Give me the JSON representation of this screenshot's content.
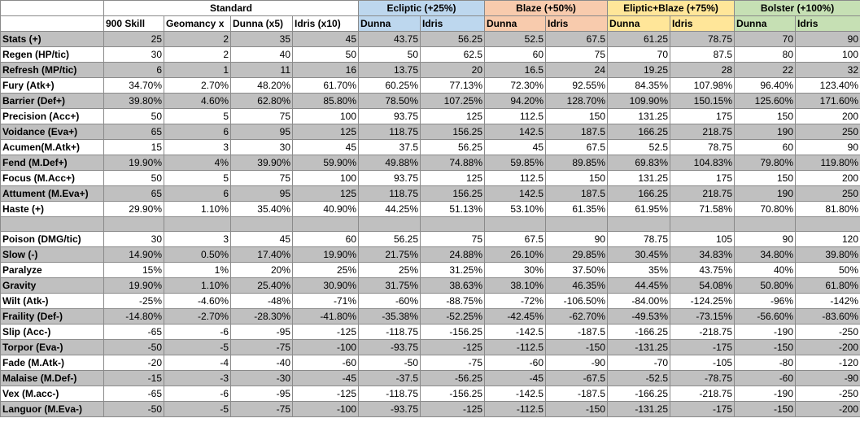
{
  "header": {
    "groups": [
      {
        "label": "Standard",
        "span": 4,
        "cls": "c-std"
      },
      {
        "label": "Ecliptic (+25%)",
        "span": 2,
        "cls": "c-ecl"
      },
      {
        "label": "Blaze (+50%)",
        "span": 2,
        "cls": "c-blz"
      },
      {
        "label": "Eliptic+Blaze (+75%)",
        "span": 2,
        "cls": "c-eb"
      },
      {
        "label": "Bolster (+100%)",
        "span": 2,
        "cls": "c-bol"
      }
    ],
    "columns": [
      "900 Skill",
      "Geomancy x",
      "Dunna (x5)",
      "Idris (x10)",
      "Dunna",
      "Idris",
      "Dunna",
      "Idris",
      "Dunna",
      "Idris",
      "Dunna",
      "Idris"
    ]
  },
  "colors": {
    "ecliptic": "#bdd7ee",
    "blaze": "#f8cbad",
    "ecliptic_blaze": "#ffe699",
    "bolster": "#c6e0b4",
    "gray_row": "#c0c0c0"
  },
  "rows": [
    {
      "label": "Stats (+)",
      "values": [
        "25",
        "2",
        "35",
        "45",
        "43.75",
        "56.25",
        "52.5",
        "67.5",
        "61.25",
        "78.75",
        "70",
        "90"
      ]
    },
    {
      "label": "Regen (HP/tic)",
      "values": [
        "30",
        "2",
        "40",
        "50",
        "50",
        "62.5",
        "60",
        "75",
        "70",
        "87.5",
        "80",
        "100"
      ]
    },
    {
      "label": "Refresh (MP/tic)",
      "values": [
        "6",
        "1",
        "11",
        "16",
        "13.75",
        "20",
        "16.5",
        "24",
        "19.25",
        "28",
        "22",
        "32"
      ]
    },
    {
      "label": "Fury (Atk+)",
      "values": [
        "34.70%",
        "2.70%",
        "48.20%",
        "61.70%",
        "60.25%",
        "77.13%",
        "72.30%",
        "92.55%",
        "84.35%",
        "107.98%",
        "96.40%",
        "123.40%"
      ]
    },
    {
      "label": "Barrier (Def+)",
      "values": [
        "39.80%",
        "4.60%",
        "62.80%",
        "85.80%",
        "78.50%",
        "107.25%",
        "94.20%",
        "128.70%",
        "109.90%",
        "150.15%",
        "125.60%",
        "171.60%"
      ]
    },
    {
      "label": "Precision (Acc+)",
      "values": [
        "50",
        "5",
        "75",
        "100",
        "93.75",
        "125",
        "112.5",
        "150",
        "131.25",
        "175",
        "150",
        "200"
      ]
    },
    {
      "label": "Voidance (Eva+)",
      "values": [
        "65",
        "6",
        "95",
        "125",
        "118.75",
        "156.25",
        "142.5",
        "187.5",
        "166.25",
        "218.75",
        "190",
        "250"
      ]
    },
    {
      "label": "Acumen(M.Atk+)",
      "values": [
        "15",
        "3",
        "30",
        "45",
        "37.5",
        "56.25",
        "45",
        "67.5",
        "52.5",
        "78.75",
        "60",
        "90"
      ]
    },
    {
      "label": "Fend (M.Def+)",
      "values": [
        "19.90%",
        "4%",
        "39.90%",
        "59.90%",
        "49.88%",
        "74.88%",
        "59.85%",
        "89.85%",
        "69.83%",
        "104.83%",
        "79.80%",
        "119.80%"
      ]
    },
    {
      "label": "Focus (M.Acc+)",
      "values": [
        "50",
        "5",
        "75",
        "100",
        "93.75",
        "125",
        "112.5",
        "150",
        "131.25",
        "175",
        "150",
        "200"
      ]
    },
    {
      "label": "Attument (M.Eva+)",
      "values": [
        "65",
        "6",
        "95",
        "125",
        "118.75",
        "156.25",
        "142.5",
        "187.5",
        "166.25",
        "218.75",
        "190",
        "250"
      ]
    },
    {
      "label": "Haste (+)",
      "values": [
        "29.90%",
        "1.10%",
        "35.40%",
        "40.90%",
        "44.25%",
        "51.13%",
        "53.10%",
        "61.35%",
        "61.95%",
        "71.58%",
        "70.80%",
        "81.80%"
      ]
    },
    {
      "label": "",
      "values": [
        "",
        "",
        "",
        "",
        "",
        "",
        "",
        "",
        "",
        "",
        "",
        ""
      ],
      "spacer": true
    },
    {
      "label": "Poison (DMG/tic)",
      "values": [
        "30",
        "3",
        "45",
        "60",
        "56.25",
        "75",
        "67.5",
        "90",
        "78.75",
        "105",
        "90",
        "120"
      ]
    },
    {
      "label": "Slow (-)",
      "values": [
        "14.90%",
        "0.50%",
        "17.40%",
        "19.90%",
        "21.75%",
        "24.88%",
        "26.10%",
        "29.85%",
        "30.45%",
        "34.83%",
        "34.80%",
        "39.80%"
      ]
    },
    {
      "label": "Paralyze",
      "values": [
        "15%",
        "1%",
        "20%",
        "25%",
        "25%",
        "31.25%",
        "30%",
        "37.50%",
        "35%",
        "43.75%",
        "40%",
        "50%"
      ]
    },
    {
      "label": "Gravity",
      "values": [
        "19.90%",
        "1.10%",
        "25.40%",
        "30.90%",
        "31.75%",
        "38.63%",
        "38.10%",
        "46.35%",
        "44.45%",
        "54.08%",
        "50.80%",
        "61.80%"
      ]
    },
    {
      "label": "Wilt (Atk-)",
      "values": [
        "-25%",
        "-4.60%",
        "-48%",
        "-71%",
        "-60%",
        "-88.75%",
        "-72%",
        "-106.50%",
        "-84.00%",
        "-124.25%",
        "-96%",
        "-142%"
      ]
    },
    {
      "label": "Fraility (Def-)",
      "values": [
        "-14.80%",
        "-2.70%",
        "-28.30%",
        "-41.80%",
        "-35.38%",
        "-52.25%",
        "-42.45%",
        "-62.70%",
        "-49.53%",
        "-73.15%",
        "-56.60%",
        "-83.60%"
      ]
    },
    {
      "label": "Slip (Acc-)",
      "values": [
        "-65",
        "-6",
        "-95",
        "-125",
        "-118.75",
        "-156.25",
        "-142.5",
        "-187.5",
        "-166.25",
        "-218.75",
        "-190",
        "-250"
      ]
    },
    {
      "label": "Torpor (Eva-)",
      "values": [
        "-50",
        "-5",
        "-75",
        "-100",
        "-93.75",
        "-125",
        "-112.5",
        "-150",
        "-131.25",
        "-175",
        "-150",
        "-200"
      ]
    },
    {
      "label": "Fade (M.Atk-)",
      "values": [
        "-20",
        "-4",
        "-40",
        "-60",
        "-50",
        "-75",
        "-60",
        "-90",
        "-70",
        "-105",
        "-80",
        "-120"
      ]
    },
    {
      "label": "Malaise (M.Def-)",
      "values": [
        "-15",
        "-3",
        "-30",
        "-45",
        "-37.5",
        "-56.25",
        "-45",
        "-67.5",
        "-52.5",
        "-78.75",
        "-60",
        "-90"
      ]
    },
    {
      "label": "Vex (M.acc-)",
      "values": [
        "-65",
        "-6",
        "-95",
        "-125",
        "-118.75",
        "-156.25",
        "-142.5",
        "-187.5",
        "-166.25",
        "-218.75",
        "-190",
        "-250"
      ]
    },
    {
      "label": "Languor (M.Eva-)",
      "values": [
        "-50",
        "-5",
        "-75",
        "-100",
        "-93.75",
        "-125",
        "-112.5",
        "-150",
        "-131.25",
        "-175",
        "-150",
        "-200"
      ]
    }
  ]
}
